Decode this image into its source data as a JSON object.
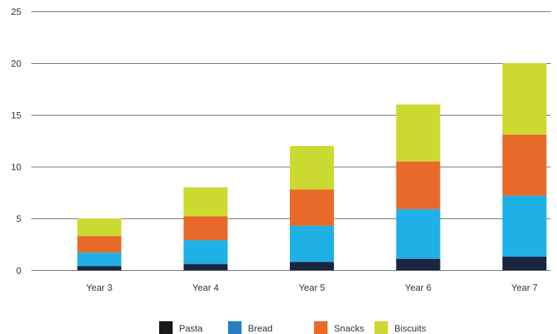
{
  "chart_data": {
    "type": "bar",
    "stacked": true,
    "title": "",
    "xlabel": "",
    "ylabel": "",
    "categories": [
      "Year 3",
      "Year 4",
      "Year 5",
      "Year 6",
      "Year 7"
    ],
    "ylim": [
      0,
      25
    ],
    "yticks": [
      0,
      5,
      10,
      15,
      20,
      25
    ],
    "grid": true,
    "legend_position": "bottom",
    "series": [
      {
        "name": "Pasta",
        "color": "#1a2540",
        "values": [
          0.4,
          0.6,
          0.8,
          1.1,
          1.3
        ]
      },
      {
        "name": "Bread",
        "color": "#1fb0e6",
        "values": [
          1.3,
          2.3,
          3.5,
          4.8,
          5.9
        ]
      },
      {
        "name": "Snacks",
        "color": "#e86a2b",
        "values": [
          1.6,
          2.3,
          3.5,
          4.6,
          5.9
        ]
      },
      {
        "name": "Biscuits",
        "color": "#ccd930",
        "values": [
          1.7,
          2.8,
          4.2,
          5.5,
          6.9
        ]
      }
    ],
    "legend_swatches": [
      "#1a1a1a",
      "#2a7fc4",
      "#e86a2b",
      "#ccd930"
    ]
  }
}
